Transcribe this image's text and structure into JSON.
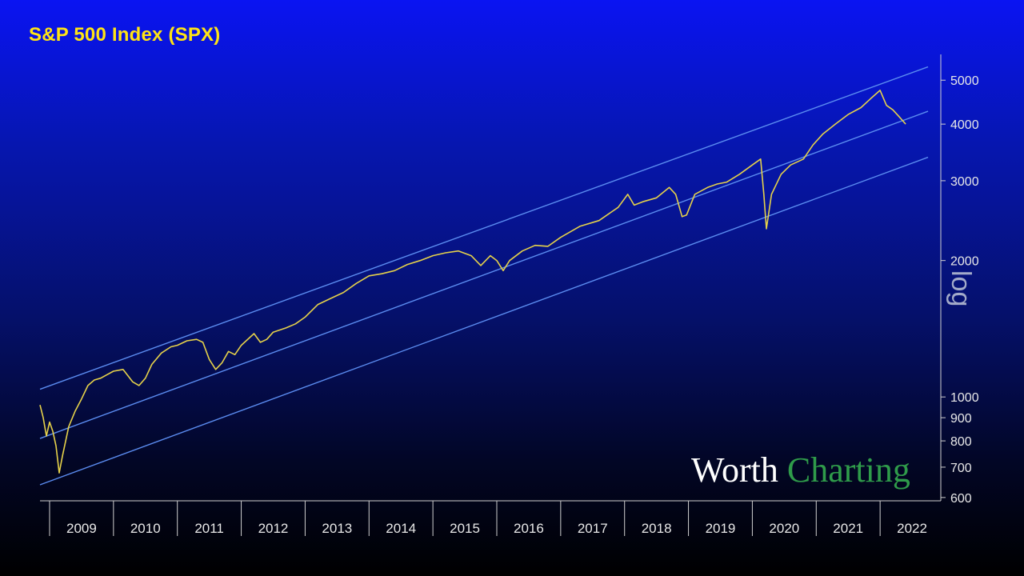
{
  "chart_data": {
    "type": "line",
    "title": "S&P 500 Index (SPX)",
    "log_scale": true,
    "axis_badge": "log",
    "ylim": [
      590,
      5700
    ],
    "xlim": [
      2008.85,
      2022.95
    ],
    "y_ticks": [
      5000,
      4000,
      3000,
      2000,
      1000,
      900,
      800,
      700,
      600
    ],
    "x_tick_labels": [
      "2009",
      "2010",
      "2011",
      "2012",
      "2013",
      "2014",
      "2015",
      "2016",
      "2017",
      "2018",
      "2019",
      "2020",
      "2021",
      "2022"
    ],
    "colors": {
      "price": "#e6d24a",
      "channel": "#5b8cf0",
      "axis": "#d0d0d0"
    },
    "channel_lines": [
      {
        "name": "",
        "x": [
          2008.85,
          2022.75
        ],
        "y": [
          1040,
          5350
        ]
      },
      {
        "name": "",
        "x": [
          2008.85,
          2022.75
        ],
        "y": [
          810,
          4270
        ]
      },
      {
        "name": "",
        "x": [
          2008.85,
          2022.75
        ],
        "y": [
          640,
          3380
        ]
      }
    ],
    "series": [
      {
        "name": "",
        "x": [
          2008.85,
          2008.9,
          2008.95,
          2009.0,
          2009.05,
          2009.1,
          2009.15,
          2009.2,
          2009.3,
          2009.4,
          2009.5,
          2009.6,
          2009.7,
          2009.8,
          2009.9,
          2010.0,
          2010.15,
          2010.3,
          2010.4,
          2010.5,
          2010.6,
          2010.75,
          2010.9,
          2011.0,
          2011.15,
          2011.3,
          2011.4,
          2011.5,
          2011.6,
          2011.7,
          2011.8,
          2011.9,
          2012.0,
          2012.2,
          2012.3,
          2012.4,
          2012.5,
          2012.7,
          2012.85,
          2013.0,
          2013.2,
          2013.4,
          2013.6,
          2013.8,
          2014.0,
          2014.2,
          2014.4,
          2014.6,
          2014.8,
          2015.0,
          2015.2,
          2015.4,
          2015.6,
          2015.75,
          2015.9,
          2016.0,
          2016.1,
          2016.2,
          2016.4,
          2016.6,
          2016.8,
          2017.0,
          2017.3,
          2017.6,
          2017.9,
          2018.05,
          2018.15,
          2018.3,
          2018.5,
          2018.7,
          2018.8,
          2018.9,
          2018.97,
          2019.1,
          2019.3,
          2019.45,
          2019.6,
          2019.8,
          2020.0,
          2020.13,
          2020.18,
          2020.22,
          2020.3,
          2020.45,
          2020.6,
          2020.8,
          2020.95,
          2021.1,
          2021.3,
          2021.5,
          2021.7,
          2021.85,
          2022.0,
          2022.1,
          2022.2,
          2022.3,
          2022.4
        ],
        "values": [
          960,
          900,
          820,
          880,
          840,
          780,
          680,
          740,
          860,
          930,
          990,
          1060,
          1090,
          1100,
          1120,
          1140,
          1150,
          1080,
          1060,
          1100,
          1180,
          1250,
          1290,
          1300,
          1330,
          1340,
          1320,
          1210,
          1150,
          1190,
          1260,
          1240,
          1300,
          1380,
          1320,
          1340,
          1390,
          1420,
          1450,
          1500,
          1600,
          1650,
          1700,
          1780,
          1850,
          1870,
          1900,
          1960,
          2000,
          2050,
          2080,
          2100,
          2050,
          1950,
          2050,
          2000,
          1900,
          2000,
          2100,
          2160,
          2150,
          2250,
          2380,
          2450,
          2620,
          2800,
          2650,
          2700,
          2750,
          2900,
          2800,
          2500,
          2520,
          2800,
          2900,
          2950,
          2980,
          3100,
          3250,
          3350,
          2800,
          2350,
          2800,
          3100,
          3250,
          3350,
          3600,
          3800,
          4000,
          4200,
          4350,
          4550,
          4750,
          4400,
          4300,
          4150,
          4000
        ]
      }
    ]
  },
  "watermark": {
    "word1": "Worth",
    "word2": "Charting"
  }
}
